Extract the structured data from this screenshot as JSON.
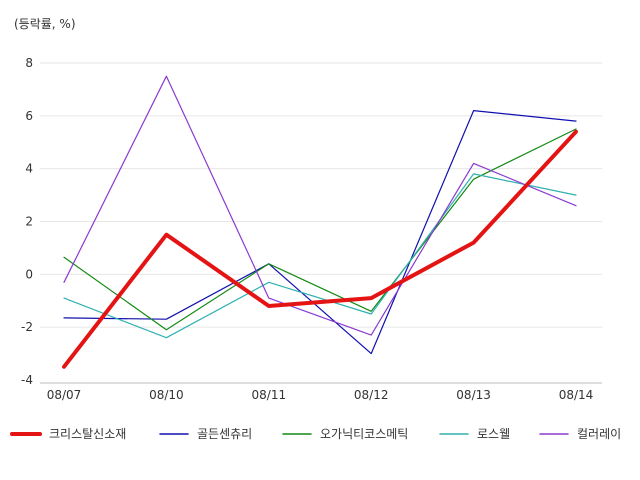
{
  "chart_data": {
    "type": "line",
    "unit_label": "(등락률, %)",
    "x": [
      "08/07",
      "08/10",
      "08/11",
      "08/12",
      "08/13",
      "08/14"
    ],
    "ylim": [
      -4,
      8
    ],
    "yticks": [
      -4,
      -2,
      0,
      2,
      4,
      6,
      8
    ],
    "grid": true,
    "legend_position": "bottom",
    "series": [
      {
        "name": "크리스탈신소재",
        "color": "#e41414",
        "width": 4,
        "values": [
          -3.5,
          1.5,
          -1.2,
          -0.9,
          1.2,
          5.4
        ]
      },
      {
        "name": "골든센츄리",
        "color": "#1010b0",
        "width": 1.2,
        "values": [
          -1.65,
          -1.7,
          0.4,
          -3.0,
          6.2,
          5.8
        ]
      },
      {
        "name": "오가닉티코스메틱",
        "color": "#138a13",
        "width": 1.2,
        "values": [
          0.65,
          -2.1,
          0.4,
          -1.4,
          3.6,
          5.5
        ]
      },
      {
        "name": "로스웰",
        "color": "#30b0b0",
        "width": 1.2,
        "values": [
          -0.9,
          -2.4,
          -0.3,
          -1.5,
          3.8,
          3.0
        ]
      },
      {
        "name": "컬러레이",
        "color": "#8a3ad0",
        "width": 1.2,
        "values": [
          -0.3,
          7.5,
          -0.9,
          -2.3,
          4.2,
          2.6
        ]
      }
    ]
  }
}
